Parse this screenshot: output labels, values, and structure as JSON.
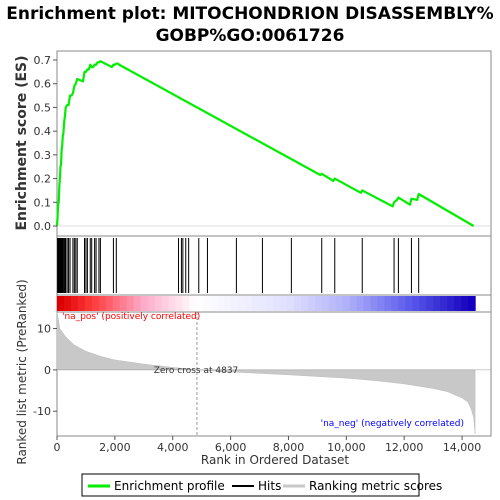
{
  "chart_data": {
    "type": "line",
    "title_line1": "Enrichment plot: MITOCHONDRION DISASSEMBLY%",
    "title_line2": "GOBP%GO:0061726",
    "ylabel_top": "Enrichment score (ES)",
    "ylabel_bottom": "Ranked list metric (PreRanked)",
    "xlabel": "Rank in Ordered Dataset",
    "xlim": [
      0,
      15000
    ],
    "ylim_es": [
      0,
      0.7
    ],
    "ylim_metric": [
      -16,
      14
    ],
    "x_ticks": [
      0,
      2000,
      4000,
      6000,
      8000,
      10000,
      12000,
      14000
    ],
    "x_tick_labels": [
      "0",
      "2,000",
      "4,000",
      "6,000",
      "8,000",
      "10,000",
      "12,000",
      "14,000"
    ],
    "es_ticks": [
      0.0,
      0.1,
      0.2,
      0.3,
      0.4,
      0.5,
      0.6,
      0.7
    ],
    "es_tick_labels": [
      "0.0",
      "0.1",
      "0.2",
      "0.3",
      "0.4",
      "0.5",
      "0.6",
      "0.7"
    ],
    "metric_ticks": [
      10,
      0,
      -10
    ],
    "metric_tick_labels": [
      "10",
      "0",
      "-10"
    ],
    "es_profile": {
      "name": "Enrichment profile",
      "color": "#00ee00",
      "x": [
        0,
        20,
        40,
        60,
        80,
        100,
        120,
        140,
        160,
        180,
        200,
        220,
        250,
        280,
        300,
        350,
        400,
        450,
        500,
        550,
        600,
        650,
        700,
        900,
        950,
        1000,
        1050,
        1100,
        1150,
        1200,
        1250,
        1300,
        1350,
        1400,
        1450,
        1500,
        1900,
        1950,
        2000,
        2050,
        2100,
        2150,
        9100,
        9150,
        9550,
        9600,
        10500,
        10550,
        11600,
        11650,
        11750,
        11800,
        12200,
        12250,
        12450,
        12500,
        14400
      ],
      "y": [
        0.0,
        0.04,
        0.09,
        0.1,
        0.17,
        0.2,
        0.25,
        0.26,
        0.32,
        0.34,
        0.38,
        0.39,
        0.44,
        0.47,
        0.5,
        0.51,
        0.51,
        0.55,
        0.55,
        0.56,
        0.59,
        0.6,
        0.62,
        0.61,
        0.65,
        0.65,
        0.66,
        0.66,
        0.68,
        0.67,
        0.67,
        0.68,
        0.68,
        0.69,
        0.69,
        0.695,
        0.67,
        0.68,
        0.68,
        0.685,
        0.685,
        0.68,
        0.215,
        0.22,
        0.19,
        0.2,
        0.14,
        0.15,
        0.083,
        0.1,
        0.11,
        0.12,
        0.09,
        0.115,
        0.11,
        0.135,
        0.0
      ]
    },
    "hits": {
      "name": "Hits",
      "x": [
        20,
        40,
        60,
        80,
        100,
        120,
        140,
        160,
        180,
        200,
        220,
        250,
        280,
        300,
        350,
        400,
        450,
        550,
        600,
        650,
        700,
        950,
        1000,
        1050,
        1150,
        1200,
        1300,
        1350,
        1450,
        1500,
        1950,
        2050,
        4200,
        4300,
        4350,
        4450,
        4550,
        4900,
        5200,
        6200,
        7100,
        8100,
        9150,
        9600,
        10550,
        11650,
        11800,
        12250,
        12500
      ]
    },
    "ranking_metric": {
      "name": "Ranking metric scores",
      "x": [
        0,
        100,
        300,
        600,
        1000,
        1500,
        2000,
        3000,
        4000,
        4837,
        6000,
        8000,
        10000,
        11000,
        12000,
        13000,
        13500,
        14000,
        14200,
        14300,
        14400,
        14450
      ],
      "y": [
        14,
        10,
        8,
        6,
        4.5,
        3.3,
        2.4,
        1.4,
        0.6,
        0,
        -0.5,
        -1.2,
        -2.0,
        -2.6,
        -3.4,
        -4.5,
        -5.3,
        -6.8,
        -7.8,
        -9.2,
        -11.5,
        -15.5
      ]
    },
    "zero_cross_label": "Zero cross at 4837",
    "zero_cross_x": 4837,
    "pos_label": "'na_pos' (positively correlated)",
    "neg_label": "'na_neg' (negatively correlated)",
    "pos_color": "#ff0000",
    "neg_color": "#0000ff",
    "legend": {
      "placement": "bottom",
      "items": [
        {
          "label": "Enrichment profile",
          "color": "#00ee00"
        },
        {
          "label": "Hits",
          "color": "#000000"
        },
        {
          "label": "Ranking metric scores",
          "color": "#c8c8c8"
        }
      ]
    }
  }
}
